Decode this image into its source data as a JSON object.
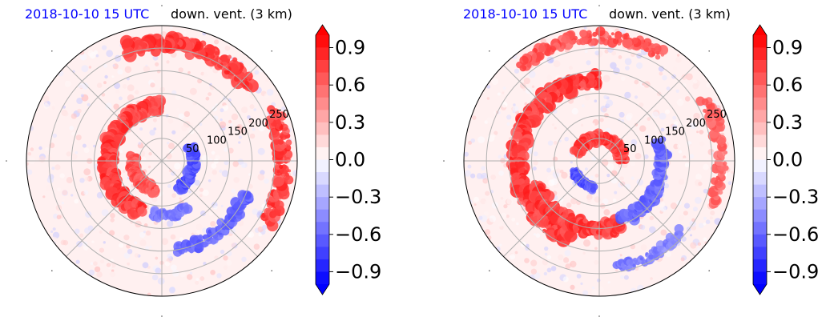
{
  "chart_data": [
    {
      "type": "heatmap",
      "projection": "polar",
      "title_left": "2018-10-10 15 UTC",
      "title_right": "down. vent. (3 km)",
      "radial_ticks": [
        "50",
        "100",
        "150",
        "200",
        "250"
      ],
      "radial_values": [
        50,
        100,
        150,
        200,
        250
      ],
      "rlim": [
        0,
        300
      ],
      "grid": true,
      "colormap": "bwr",
      "colorbar": {
        "ticks": [
          "0.9",
          "0.6",
          "0.3",
          "0.0",
          "−0.3",
          "−0.6",
          "−0.9"
        ],
        "tick_values": [
          0.9,
          0.6,
          0.3,
          0.0,
          -0.3,
          -0.6,
          -0.9
        ],
        "vmin": -1.0,
        "vmax": 1.0,
        "extend": "both"
      },
      "features": [
        {
          "kind": "positive",
          "r": 120,
          "theta0": 90,
          "theta1": 250,
          "width": 30,
          "value": 0.9
        },
        {
          "kind": "positive",
          "r": 260,
          "theta0": 40,
          "theta1": 110,
          "width": 35,
          "value": 0.9
        },
        {
          "kind": "positive",
          "r": 270,
          "theta0": -30,
          "theta1": 25,
          "width": 30,
          "value": 0.9
        },
        {
          "kind": "positive",
          "r": 65,
          "theta0": 170,
          "theta1": 260,
          "width": 20,
          "value": 0.8
        },
        {
          "kind": "negative",
          "r": 70,
          "theta0": -60,
          "theta1": 30,
          "width": 20,
          "value": -0.8
        },
        {
          "kind": "negative",
          "r": 200,
          "theta0": -80,
          "theta1": -20,
          "width": 25,
          "value": -0.7
        },
        {
          "kind": "negative",
          "r": 120,
          "theta0": -100,
          "theta1": -60,
          "width": 20,
          "value": -0.6
        }
      ]
    },
    {
      "type": "heatmap",
      "projection": "polar",
      "title_left": "2018-10-10 15 UTC",
      "title_right": "down. vent. (3 km)",
      "radial_ticks": [
        "50",
        "100",
        "150",
        "200",
        "250"
      ],
      "radial_values": [
        50,
        100,
        150,
        200,
        250
      ],
      "rlim": [
        0,
        300
      ],
      "grid": true,
      "colormap": "bwr",
      "colorbar": {
        "ticks": [
          "0.9",
          "0.6",
          "0.3",
          "0.0",
          "−0.3",
          "−0.6",
          "−0.9"
        ],
        "tick_values": [
          0.9,
          0.6,
          0.3,
          0.0,
          -0.3,
          -0.6,
          -0.9
        ],
        "vmin": -1.0,
        "vmax": 1.0,
        "extend": "both"
      },
      "features": [
        {
          "kind": "positive",
          "r": 180,
          "theta0": 90,
          "theta1": 250,
          "width": 35,
          "value": 0.9
        },
        {
          "kind": "positive",
          "r": 150,
          "theta0": 200,
          "theta1": 290,
          "width": 30,
          "value": 0.9
        },
        {
          "kind": "positive",
          "r": 50,
          "theta0": 0,
          "theta1": 160,
          "width": 22,
          "value": 0.9
        },
        {
          "kind": "positive",
          "r": 275,
          "theta0": 60,
          "theta1": 130,
          "width": 25,
          "value": 0.8
        },
        {
          "kind": "positive",
          "r": 270,
          "theta0": -20,
          "theta1": 30,
          "width": 25,
          "value": 0.7
        },
        {
          "kind": "negative",
          "r": 140,
          "theta0": -70,
          "theta1": 20,
          "width": 25,
          "value": -0.7
        },
        {
          "kind": "negative",
          "r": 60,
          "theta0": 200,
          "theta1": 260,
          "width": 15,
          "value": -0.8
        },
        {
          "kind": "negative",
          "r": 240,
          "theta0": -80,
          "theta1": -40,
          "width": 20,
          "value": -0.6
        }
      ]
    }
  ]
}
